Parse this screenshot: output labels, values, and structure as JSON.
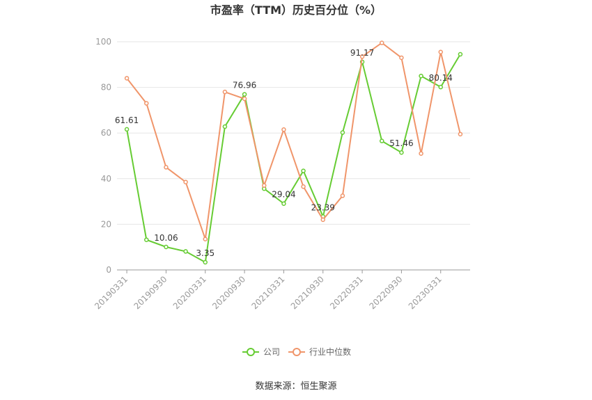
{
  "chart_data": {
    "type": "line",
    "title": "市盈率（TTM）历史百分位（%）",
    "source": "数据来源：恒生聚源",
    "ylim": [
      0,
      100
    ],
    "yticks": [
      0,
      20,
      40,
      60,
      80,
      100
    ],
    "grid": true,
    "legend_position": "bottom-center",
    "x": [
      "20190331",
      "20190630",
      "20190930",
      "20191231",
      "20200331",
      "20200630",
      "20200930",
      "20201231",
      "20210331",
      "20210630",
      "20210930",
      "20211231",
      "20220331",
      "20220630",
      "20220930",
      "20221231",
      "20230331",
      "20230630"
    ],
    "xtick_labels": [
      "20190331",
      "20190930",
      "20200331",
      "20200930",
      "20210331",
      "20210930",
      "20220331",
      "20220930",
      "20230331"
    ],
    "series": [
      {
        "name": "公司",
        "color": "#66cc33",
        "values": [
          61.61,
          13.2,
          10.06,
          8.1,
          3.35,
          62.8,
          76.96,
          35.6,
          29.04,
          43.4,
          23.39,
          60.2,
          91.17,
          56.5,
          51.46,
          85.0,
          80.14,
          94.5
        ],
        "labels": [
          "61.61",
          "",
          "10.06",
          "",
          "3.35",
          "",
          "76.96",
          "",
          "29.04",
          "",
          "23.39",
          "",
          "91.17",
          "",
          "51.46",
          "",
          "80.14",
          ""
        ]
      },
      {
        "name": "行业中位数",
        "color": "#f0956a",
        "values": [
          84.0,
          73.0,
          45.0,
          38.5,
          13.5,
          78.0,
          75.0,
          37.0,
          61.5,
          36.5,
          22.0,
          32.5,
          93.5,
          99.5,
          93.0,
          51.0,
          95.5,
          59.5
        ]
      }
    ]
  }
}
